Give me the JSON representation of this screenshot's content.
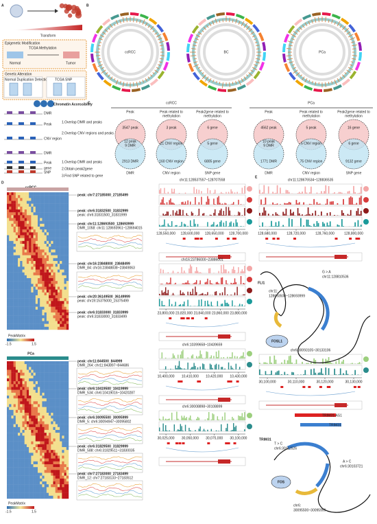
{
  "panel_labels": {
    "a": "A",
    "b": "B",
    "c": "C",
    "d": "D",
    "e": "E"
  },
  "panel_a": {
    "transform": "Transform",
    "epigenetic_box": {
      "title": "Epigenetic Modification",
      "source": "TCGA Methylation",
      "normal": "Normal",
      "tumor": "Tumor"
    },
    "genetic_box": {
      "title": "Genetic Alteration",
      "detection": "Normal Duplication Detection",
      "source": "TCGA SNP"
    },
    "chromatin": "Chromatin Accessibility",
    "workflows": [
      {
        "tracks": [
          "DMR",
          "Peak"
        ],
        "steps": [
          "1.Overlap DMR and peaks"
        ]
      },
      {
        "tracks": [
          "CNV region"
        ],
        "steps": [
          "2.Overlap CNV regions and peaks"
        ]
      },
      {
        "tracks": [
          "DMR",
          "Peak",
          "SNP",
          "gene"
        ],
        "steps": [
          "1.Overlap DMR and peaks",
          "2.Obtain peak2gene",
          "3.Find SNP related to gene"
        ]
      }
    ]
  },
  "panel_b": {
    "circos": [
      "ccRCC",
      "BC",
      "PCa"
    ]
  },
  "panel_c": {
    "groups": [
      {
        "name": "ccRCC",
        "venns": [
          {
            "title": [
              "Peak"
            ],
            "top": "3547 peak",
            "overlap": [
              "12 peak",
              "9 DMR"
            ],
            "bottom": "2913 DMR",
            "label": "DMR"
          },
          {
            "title": [
              "Peak related to",
              "methylation"
            ],
            "top": "3 peak",
            "overlap": [
              "21 CNV region"
            ],
            "bottom": "160 CNV region",
            "label": "CNV region"
          },
          {
            "title": [
              "Peak2gene related to",
              "methylation"
            ],
            "top": "6 gene",
            "overlap": [
              "5 gene"
            ],
            "bottom": "6805 gene",
            "label": "SNP gene"
          }
        ]
      },
      {
        "name": "PCa",
        "venns": [
          {
            "title": [
              "Peak"
            ],
            "top": "4562 peak",
            "overlap": [
              "10 peak",
              "9 DMR"
            ],
            "bottom": "1771 DMR",
            "label": "DMR"
          },
          {
            "title": [
              "Peak related to",
              "methylation"
            ],
            "top": "5 peak",
            "overlap": [
              "5 CNV region"
            ],
            "bottom": "75 CNV region",
            "label": "CNV region"
          },
          {
            "title": [
              "Peak2gene related to",
              "methylation"
            ],
            "top": "16 gene",
            "overlap": [
              "6 gene"
            ],
            "bottom": "9132 gene",
            "label": "SNP gene"
          }
        ]
      }
    ]
  },
  "panel_d": {
    "cohorts": [
      {
        "name": "ccRCC",
        "legend_title": "PeakMatrix",
        "scale": [
          "-1.5",
          "1.5"
        ],
        "annotations": [
          {
            "lines": [
              "peak: chr7:27185000_27185499"
            ]
          },
          {
            "lines": [
              "peak: chr6:31832500_31832999",
              "peak: chr6:31831500_31831999"
            ]
          },
          {
            "lines": [
              "peak: chr11:128693500_128693999",
              "DMR_1058: chr11:128693961~128694015"
            ]
          },
          {
            "lines": [
              "peak: chr16:23848000_23848499",
              "DMR_84: chr16:23848838~23849063"
            ]
          },
          {
            "lines": [
              "peak: chr20:36149500_36149999",
              "peak: chr19:15375000_15375499"
            ]
          },
          {
            "lines": [
              "peak: chr6:31833000_31833999",
              "peak: chr6:31833000_31833499"
            ]
          }
        ]
      },
      {
        "name": "PCa",
        "legend_title": "PeakMatrix",
        "scale": [
          "-1.5",
          "1.5"
        ],
        "annotations": [
          {
            "lines": [
              "peak: chr11:844500_844999",
              "DMR_264: chr11:843897~844686"
            ]
          },
          {
            "lines": [
              "peak: chr6:10419500_10419999",
              "DMR_534: chr6:10419016~10420287"
            ]
          },
          {
            "lines": [
              "peak: chr6:30095500_30095999",
              "DMR_5: chr6:30094947~30095802"
            ]
          },
          {
            "lines": [
              "peak: chr6:31829500_31829999",
              "DMR_588: chr6:31829511~31830035"
            ]
          },
          {
            "lines": [
              "peak: chr7:27183000_27183499",
              "DMR_12: chr7:27183133~27183512"
            ]
          }
        ]
      }
    ],
    "tracks": [
      {
        "region": "chr11:128537557~128707558",
        "ticks": [
          "128,550,000",
          "128,600,000",
          "128,650,000",
          "128,700,000"
        ]
      },
      {
        "region": "chr16:23786000~23886001",
        "ticks": [
          "23,800,000",
          "23,820,000",
          "23,840,000",
          "23,860,000",
          "23,880,000"
        ]
      },
      {
        "region": "chr6:10399658~10439659",
        "ticks": [
          "10,400,000",
          "10,410,000",
          "10,420,000",
          "10,430,000"
        ]
      },
      {
        "region": "chr6:30008898~30108899",
        "ticks": [
          "30,025,000",
          "30,050,000",
          "30,075,000",
          "30,100,000"
        ]
      }
    ]
  },
  "panel_e": {
    "loci": [
      {
        "region": "chr11:128676534~128836535",
        "ticks": [
          "128,680,000",
          "128,720,000",
          "128,760,000",
          "128,800,000"
        ],
        "transcripts": [],
        "gene": "FLI1",
        "variants": [
          {
            "change": "G > A",
            "position": "chr11:128810536"
          }
        ],
        "peak": [
          "chr11:",
          "128693500~128693999"
        ],
        "factor": "FOSL1"
      },
      {
        "region": "chr6:30093105~30133106",
        "ticks": [
          "30,100,000",
          "30,110,000",
          "30,120,000",
          "30,130,000"
        ],
        "transcripts": [
          "TRIM31-AS1",
          "TRIM31"
        ],
        "gene": "TRIM31",
        "variants": [
          {
            "change": "T > C",
            "position": "chr6:30112526"
          },
          {
            "change": "A > C",
            "position": "chr6:30103721"
          }
        ],
        "peak": [
          "chr6:",
          "30095500~30095999"
        ],
        "factor": "FOS"
      }
    ]
  }
}
